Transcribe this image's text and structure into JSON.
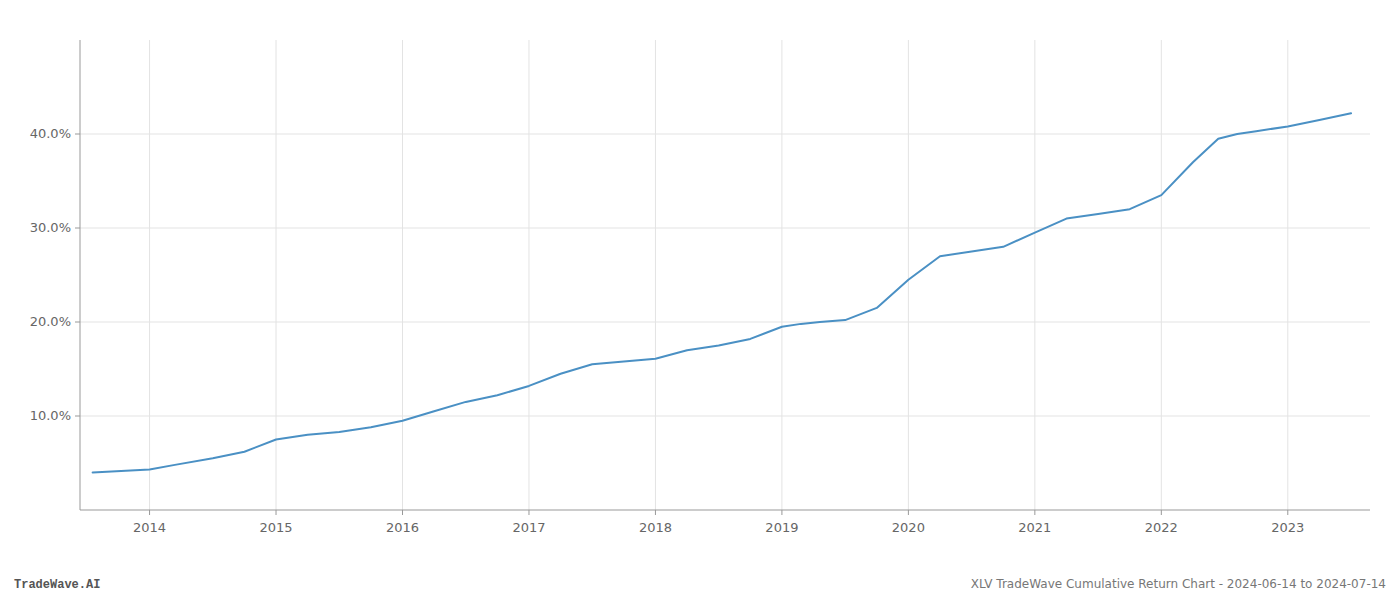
{
  "chart_data": {
    "type": "line",
    "title": "XLV TradeWave Cumulative Return Chart - 2024-06-14 to 2024-07-14",
    "annotations": [
      "TradeWave.AI"
    ],
    "color": "#4a90c4",
    "grid": true,
    "x": [
      2013.55,
      2014.0,
      2014.2,
      2014.5,
      2014.75,
      2015.0,
      2015.25,
      2015.5,
      2015.75,
      2016.0,
      2016.25,
      2016.5,
      2016.75,
      2017.0,
      2017.25,
      2017.5,
      2017.75,
      2018.0,
      2018.25,
      2018.5,
      2018.75,
      2019.0,
      2019.15,
      2019.3,
      2019.5,
      2019.75,
      2020.0,
      2020.25,
      2020.5,
      2020.75,
      2021.0,
      2021.25,
      2021.5,
      2021.75,
      2022.0,
      2022.25,
      2022.45,
      2022.6,
      2022.75,
      2023.0,
      2023.25,
      2023.5
    ],
    "values": [
      4.0,
      4.3,
      4.8,
      5.5,
      6.2,
      7.5,
      8.0,
      8.3,
      8.8,
      9.5,
      10.5,
      11.5,
      12.2,
      13.2,
      14.5,
      15.5,
      15.8,
      16.1,
      17.0,
      17.5,
      18.2,
      19.5,
      19.8,
      20.0,
      20.2,
      21.5,
      24.5,
      27.0,
      27.5,
      28.0,
      29.5,
      31.0,
      31.5,
      32.0,
      33.5,
      37.0,
      39.5,
      40.0,
      40.3,
      40.8,
      41.5,
      42.2
    ],
    "xlim": [
      2013.45,
      2023.65
    ],
    "ylim": [
      0,
      50
    ],
    "xticks": [
      2014,
      2015,
      2016,
      2017,
      2018,
      2019,
      2020,
      2021,
      2022,
      2023
    ],
    "yticks": [
      {
        "value": 10.0,
        "label": "10.0%"
      },
      {
        "value": 20.0,
        "label": "20.0%"
      },
      {
        "value": 30.0,
        "label": "30.0%"
      },
      {
        "value": 40.0,
        "label": "40.0%"
      }
    ]
  }
}
